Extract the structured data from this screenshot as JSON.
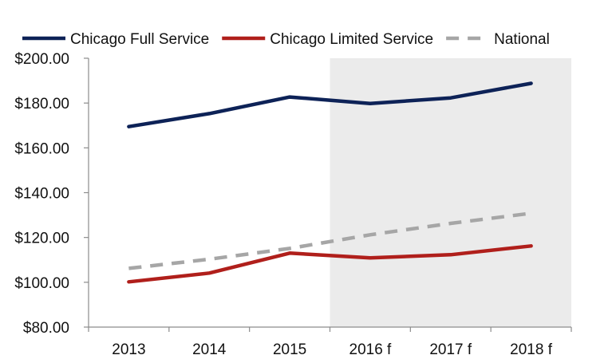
{
  "chart_data": {
    "type": "line",
    "categories": [
      "2013",
      "2014",
      "2015",
      "2016 f",
      "2017 f",
      "2018 f"
    ],
    "forecast_categories": [
      "2016 f",
      "2017 f",
      "2018 f"
    ],
    "series": [
      {
        "name": "Chicago Full Service",
        "color": "#0d2257",
        "dash": "solid",
        "values": [
          169.5,
          175.3,
          182.7,
          179.8,
          182.3,
          188.8
        ]
      },
      {
        "name": "Chicago Limited Service",
        "color": "#b01f1b",
        "dash": "solid",
        "values": [
          100.2,
          104.1,
          113.0,
          110.9,
          112.3,
          116.2
        ]
      },
      {
        "name": "National",
        "color": "#a6a6a6",
        "dash": "dashed",
        "values": [
          106.2,
          110.3,
          115.1,
          121.2,
          126.3,
          130.8
        ]
      }
    ],
    "ylim": [
      80,
      200
    ],
    "yticks": [
      {
        "value": 80,
        "label": "$80.00"
      },
      {
        "value": 100,
        "label": "$100.00"
      },
      {
        "value": 120,
        "label": "$120.00"
      },
      {
        "value": 140,
        "label": "$140.00"
      },
      {
        "value": 160,
        "label": "$160.00"
      },
      {
        "value": 180,
        "label": "$180.00"
      },
      {
        "value": 200,
        "label": "$200.00"
      }
    ],
    "title": "",
    "xlabel": "",
    "ylabel": "",
    "legend_position": "top",
    "forecast_shade_color": "#ebebeb",
    "grid": false
  }
}
